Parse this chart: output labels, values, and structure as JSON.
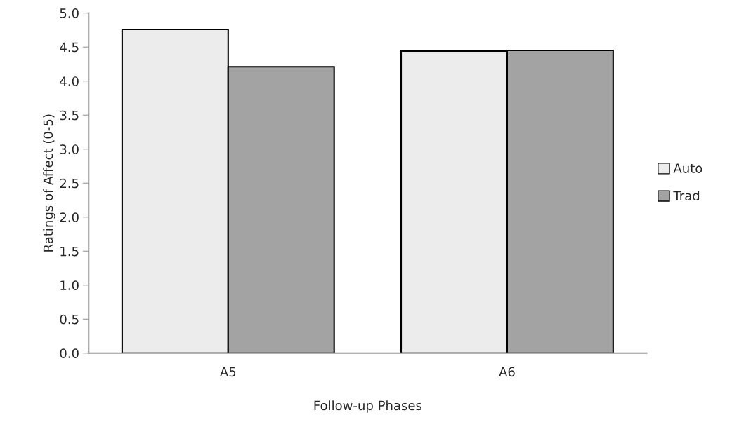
{
  "chart_data": {
    "type": "bar",
    "xlabel": "Follow-up Phases",
    "ylabel": "Ratings of Affect (0-5)",
    "categories": [
      "A5",
      "A6"
    ],
    "series": [
      {
        "name": "Auto",
        "color": "#ececec",
        "values": [
          4.76,
          4.44
        ]
      },
      {
        "name": "Trad",
        "color": "#a3a3a3",
        "values": [
          4.21,
          4.45
        ]
      }
    ],
    "ylim": [
      0,
      5
    ],
    "yticks": [
      {
        "value": 0,
        "label": "0.0"
      },
      {
        "value": 0.5,
        "label": "0.5"
      },
      {
        "value": 1,
        "label": "1.0"
      },
      {
        "value": 1.5,
        "label": "1.5"
      },
      {
        "value": 2,
        "label": "2.0"
      },
      {
        "value": 2.5,
        "label": "2.5"
      },
      {
        "value": 3,
        "label": "3.0"
      },
      {
        "value": 3.5,
        "label": "3.5"
      },
      {
        "value": 4,
        "label": "4.0"
      },
      {
        "value": 4.5,
        "label": "4.5"
      },
      {
        "value": 5,
        "label": "5.0"
      }
    ],
    "grid": false,
    "legend": "right"
  }
}
